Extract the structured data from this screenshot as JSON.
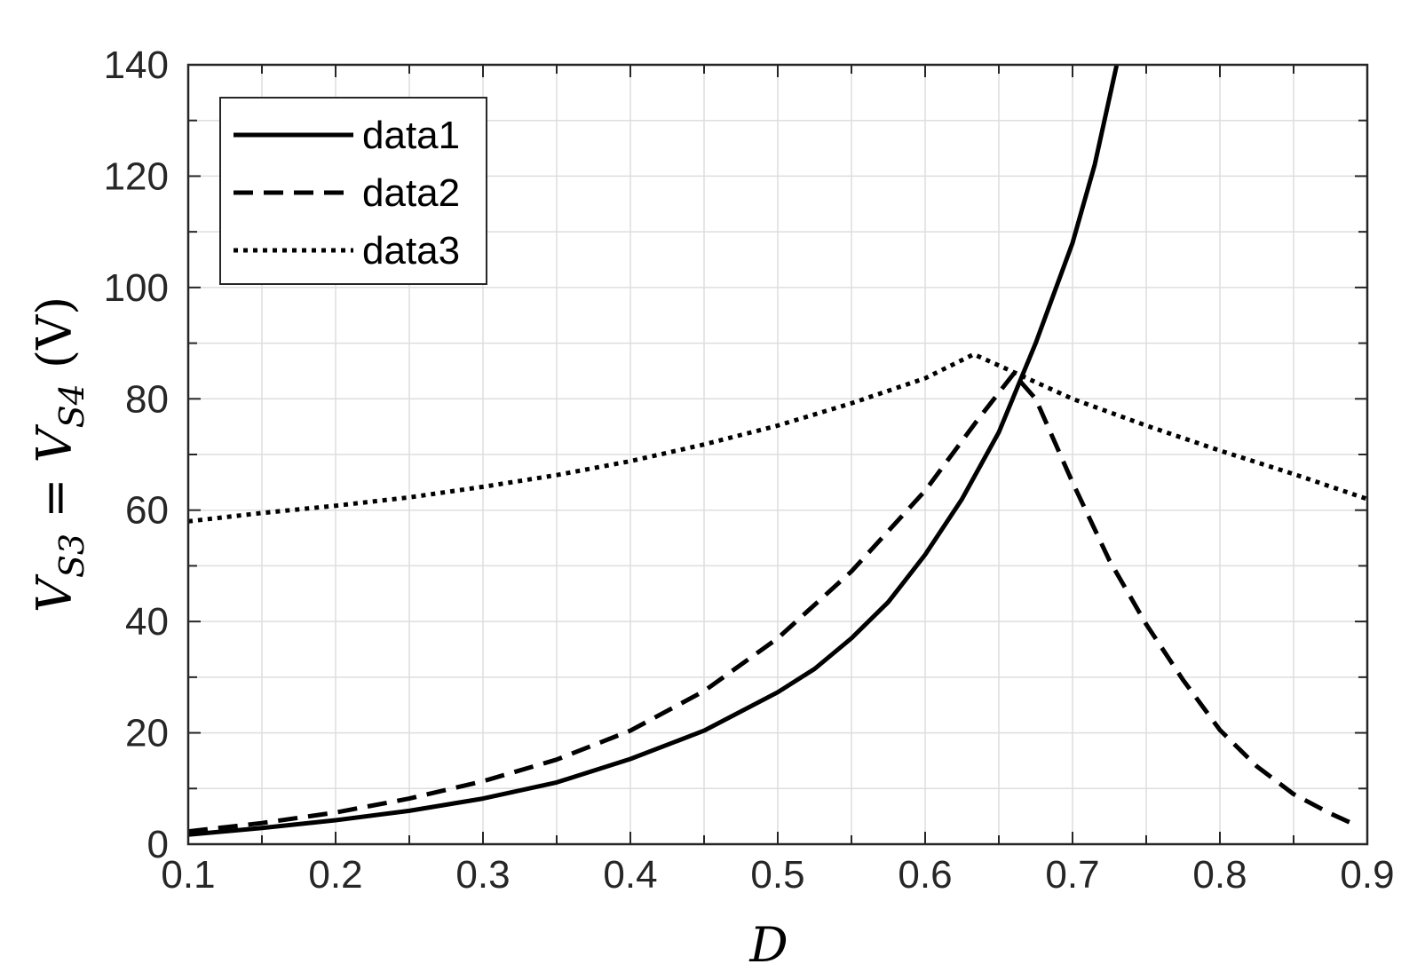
{
  "chart_data": {
    "type": "line",
    "xlabel": "D",
    "ylabel": {
      "v1": "V",
      "s1": "S3",
      "eq": " = ",
      "v2": "V",
      "s2": "S4",
      "unit": " (V)"
    },
    "xlim": [
      0.1,
      0.9
    ],
    "ylim": [
      0,
      140
    ],
    "x_ticks": [
      "0.1",
      "0.2",
      "0.3",
      "0.4",
      "0.5",
      "0.6",
      "0.7",
      "0.8",
      "0.9"
    ],
    "y_ticks": [
      "0",
      "20",
      "40",
      "60",
      "80",
      "100",
      "120",
      "140"
    ],
    "grid": true,
    "legend_position": "top-left",
    "series": [
      {
        "name": "data1",
        "style": "solid",
        "color": "#000000",
        "points": [
          [
            0.1,
            1.7
          ],
          [
            0.15,
            2.9
          ],
          [
            0.2,
            4.3
          ],
          [
            0.25,
            6.0
          ],
          [
            0.3,
            8.2
          ],
          [
            0.35,
            11.1
          ],
          [
            0.4,
            15.3
          ],
          [
            0.45,
            20.4
          ],
          [
            0.5,
            27.3
          ],
          [
            0.525,
            31.5
          ],
          [
            0.55,
            37.0
          ],
          [
            0.575,
            43.5
          ],
          [
            0.6,
            52.0
          ],
          [
            0.625,
            62.0
          ],
          [
            0.65,
            74.0
          ],
          [
            0.675,
            90.0
          ],
          [
            0.7,
            108.0
          ],
          [
            0.715,
            122.0
          ],
          [
            0.73,
            140.0
          ]
        ]
      },
      {
        "name": "data2",
        "style": "dashed",
        "color": "#000000",
        "points": [
          [
            0.1,
            2.3
          ],
          [
            0.15,
            3.8
          ],
          [
            0.2,
            5.7
          ],
          [
            0.25,
            8.2
          ],
          [
            0.3,
            11.3
          ],
          [
            0.35,
            15.2
          ],
          [
            0.4,
            20.4
          ],
          [
            0.45,
            27.5
          ],
          [
            0.5,
            37.0
          ],
          [
            0.55,
            49.0
          ],
          [
            0.6,
            63.5
          ],
          [
            0.635,
            76.0
          ],
          [
            0.66,
            84.5
          ],
          [
            0.675,
            80.0
          ],
          [
            0.7,
            65.0
          ],
          [
            0.725,
            51.0
          ],
          [
            0.75,
            39.5
          ],
          [
            0.775,
            29.5
          ],
          [
            0.8,
            20.5
          ],
          [
            0.825,
            14.0
          ],
          [
            0.85,
            9.0
          ],
          [
            0.875,
            5.5
          ],
          [
            0.89,
            3.7
          ]
        ]
      },
      {
        "name": "data3",
        "style": "dotted",
        "color": "#000000",
        "points": [
          [
            0.1,
            58.0
          ],
          [
            0.15,
            59.5
          ],
          [
            0.2,
            60.8
          ],
          [
            0.25,
            62.3
          ],
          [
            0.3,
            64.2
          ],
          [
            0.35,
            66.3
          ],
          [
            0.4,
            68.8
          ],
          [
            0.45,
            71.8
          ],
          [
            0.5,
            75.2
          ],
          [
            0.55,
            79.2
          ],
          [
            0.6,
            83.7
          ],
          [
            0.633,
            88.0
          ],
          [
            0.65,
            86.0
          ],
          [
            0.7,
            80.0
          ],
          [
            0.75,
            75.2
          ],
          [
            0.8,
            70.7
          ],
          [
            0.85,
            66.5
          ],
          [
            0.9,
            62.0
          ]
        ]
      }
    ]
  }
}
